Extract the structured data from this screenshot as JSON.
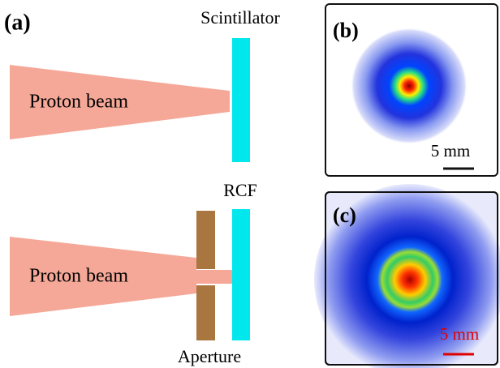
{
  "panels": {
    "a": {
      "label": "(a)",
      "top": {
        "beam": "Proton beam",
        "detector": "Scintillator"
      },
      "bottom": {
        "beam": "Proton beam",
        "detector": "RCF",
        "aperture": "Aperture"
      }
    },
    "b": {
      "label": "(b)",
      "scale": "5 mm"
    },
    "c": {
      "label": "(c)",
      "scale": "5 mm"
    }
  }
}
